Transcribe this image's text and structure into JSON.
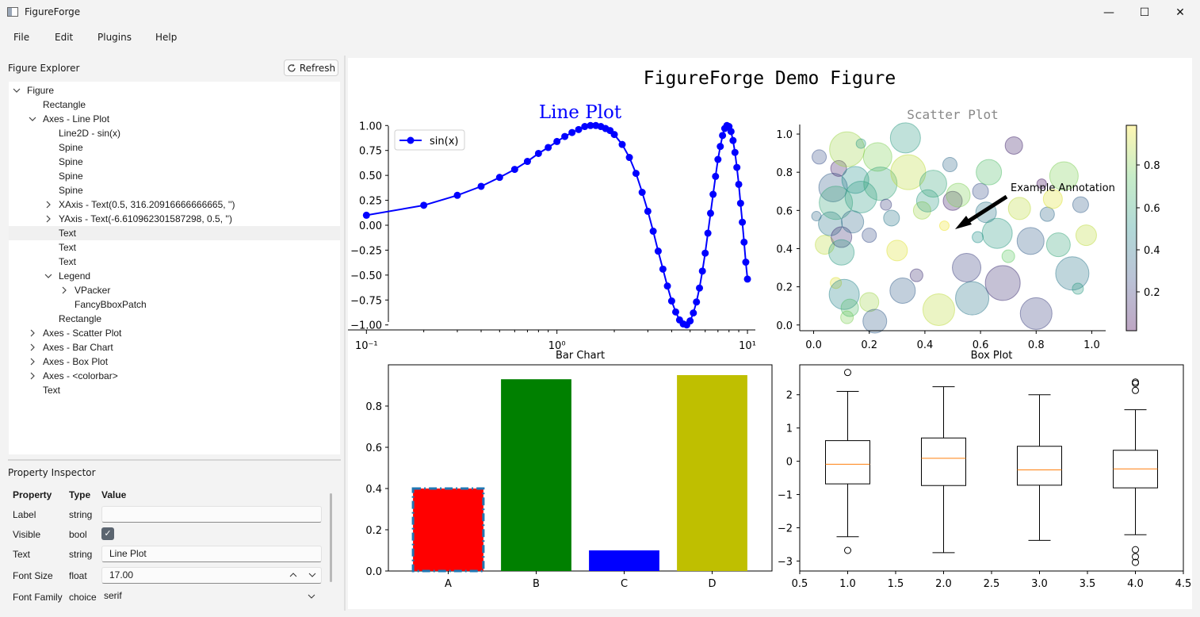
{
  "window": {
    "title": "FigureForge",
    "minimize": "—",
    "maximize": "☐",
    "close": "✕"
  },
  "menu": [
    "File",
    "Edit",
    "Plugins",
    "Help"
  ],
  "explorer": {
    "label": "Figure Explorer",
    "refresh": "Refresh",
    "tree": [
      {
        "text": "Figure",
        "level": 0,
        "arrow": "open"
      },
      {
        "text": "Rectangle",
        "level": 1,
        "arrow": "none"
      },
      {
        "text": "Axes - Line Plot",
        "level": 1,
        "arrow": "open"
      },
      {
        "text": "Line2D - sin(x)",
        "level": 2,
        "arrow": "none"
      },
      {
        "text": "Spine",
        "level": 2,
        "arrow": "none"
      },
      {
        "text": "Spine",
        "level": 2,
        "arrow": "none"
      },
      {
        "text": "Spine",
        "level": 2,
        "arrow": "none"
      },
      {
        "text": "Spine",
        "level": 2,
        "arrow": "none"
      },
      {
        "text": "XAxis - Text(0.5, 316.20916666666665, '')",
        "level": 2,
        "arrow": "closed"
      },
      {
        "text": "YAxis - Text(-6.610962301587298, 0.5, '')",
        "level": 2,
        "arrow": "closed"
      },
      {
        "text": "Text",
        "level": 2,
        "arrow": "none",
        "selected": true
      },
      {
        "text": "Text",
        "level": 2,
        "arrow": "none"
      },
      {
        "text": "Text",
        "level": 2,
        "arrow": "none"
      },
      {
        "text": "Legend",
        "level": 2,
        "arrow": "open"
      },
      {
        "text": "VPacker",
        "level": 3,
        "arrow": "closed"
      },
      {
        "text": "FancyBboxPatch",
        "level": 3,
        "arrow": "none"
      },
      {
        "text": "Rectangle",
        "level": 2,
        "arrow": "none"
      },
      {
        "text": "Axes - Scatter Plot",
        "level": 1,
        "arrow": "closed"
      },
      {
        "text": "Axes - Bar Chart",
        "level": 1,
        "arrow": "closed"
      },
      {
        "text": "Axes - Box Plot",
        "level": 1,
        "arrow": "closed"
      },
      {
        "text": "Axes - <colorbar>",
        "level": 1,
        "arrow": "closed"
      },
      {
        "text": "Text",
        "level": 1,
        "arrow": "none"
      }
    ]
  },
  "inspector": {
    "label": "Property Inspector",
    "headers": [
      "Property",
      "Type",
      "Value"
    ],
    "rows": [
      {
        "property": "Label",
        "type": "string",
        "value": ""
      },
      {
        "property": "Visible",
        "type": "bool",
        "value": "✓"
      },
      {
        "property": "Text",
        "type": "string",
        "value": "Line Plot"
      },
      {
        "property": "Font Size",
        "type": "float",
        "value": "17.00"
      },
      {
        "property": "Font Family",
        "type": "choice",
        "value": "serif"
      }
    ]
  },
  "figure": {
    "suptitle": "FigureForge Demo Figure",
    "line": {
      "title": "Line Plot",
      "legend": "sin(x)",
      "color": "#0000ff",
      "xscale": "log",
      "xlim": [
        0.08,
        11
      ],
      "ylim": [
        -1.05,
        1.05
      ],
      "xticks": [
        "10⁻¹",
        "10⁰",
        "10¹"
      ],
      "yticks": [
        "1.00",
        "0.75",
        "0.50",
        "0.25",
        "0.00",
        "−0.25",
        "−0.50",
        "−0.75",
        "−1.00"
      ]
    },
    "scatter": {
      "title": "Scatter Plot",
      "annotation": "Example Annotation",
      "xticks": [
        "0.0",
        "0.2",
        "0.4",
        "0.6",
        "0.8",
        "1.0"
      ],
      "yticks": [
        "0.0",
        "0.2",
        "0.4",
        "0.6",
        "0.8",
        "1.0"
      ],
      "colorbar_ticks": [
        "0.8",
        "0.6",
        "0.4",
        "0.2"
      ]
    },
    "bar": {
      "title": "Bar Chart",
      "yticks": [
        "0.0",
        "0.2",
        "0.4",
        "0.6",
        "0.8"
      ]
    },
    "box": {
      "title": "Box Plot",
      "xticks": [
        "0.5",
        "1.0",
        "1.5",
        "2.0",
        "2.5",
        "3.0",
        "3.5",
        "4.0",
        "4.5"
      ],
      "yticks": [
        "2",
        "1",
        "0",
        "−1",
        "−2",
        "−3"
      ]
    }
  },
  "chart_data": [
    {
      "type": "line",
      "title": "Line Plot",
      "series": [
        {
          "name": "sin(x)",
          "x": [
            0.1,
            0.2,
            0.3,
            0.4,
            0.5,
            0.6,
            0.7,
            0.8,
            0.9,
            1.0,
            1.1,
            1.2,
            1.3,
            1.4,
            1.5,
            1.6,
            1.7,
            1.8,
            1.9,
            2.0,
            2.2,
            2.4,
            2.6,
            2.8,
            3.0,
            3.2,
            3.4,
            3.6,
            3.8,
            4.0,
            4.2,
            4.4,
            4.6,
            4.8,
            5.0,
            5.2,
            5.4,
            5.6,
            5.8,
            6.0,
            6.2,
            6.4,
            6.6,
            6.8,
            7.0,
            7.2,
            7.4,
            7.6,
            7.8,
            8.0,
            8.2,
            8.4,
            8.6,
            8.8,
            9.0,
            9.2,
            9.4,
            9.6,
            9.8,
            10.0
          ],
          "y": [
            0.1,
            0.2,
            0.3,
            0.39,
            0.48,
            0.56,
            0.64,
            0.72,
            0.78,
            0.84,
            0.89,
            0.93,
            0.96,
            0.99,
            1.0,
            1.0,
            0.99,
            0.97,
            0.95,
            0.91,
            0.81,
            0.68,
            0.52,
            0.33,
            0.14,
            -0.06,
            -0.26,
            -0.44,
            -0.61,
            -0.76,
            -0.87,
            -0.95,
            -0.99,
            -1.0,
            -0.96,
            -0.88,
            -0.77,
            -0.63,
            -0.46,
            -0.28,
            -0.08,
            0.12,
            0.31,
            0.49,
            0.66,
            0.79,
            0.9,
            0.97,
            1.0,
            0.99,
            0.94,
            0.85,
            0.73,
            0.58,
            0.41,
            0.22,
            0.03,
            -0.17,
            -0.37,
            -0.54
          ]
        }
      ],
      "xlim": [
        0.08,
        11
      ],
      "ylim": [
        -1.05,
        1.05
      ],
      "xscale": "log"
    },
    {
      "type": "scatter",
      "title": "Scatter Plot",
      "points": [
        [
          0.01,
          0.57,
          0.35
        ],
        [
          0.02,
          0.88,
          0.25
        ],
        [
          0.04,
          0.42,
          0.9
        ],
        [
          0.06,
          0.53,
          0.4
        ],
        [
          0.07,
          0.72,
          0.3
        ],
        [
          0.08,
          0.64,
          0.6
        ],
        [
          0.08,
          0.22,
          0.95
        ],
        [
          0.09,
          0.82,
          0.1
        ],
        [
          0.1,
          0.46,
          0.15
        ],
        [
          0.1,
          0.38,
          0.55
        ],
        [
          0.11,
          0.16,
          0.45
        ],
        [
          0.12,
          0.92,
          0.85
        ],
        [
          0.12,
          0.04,
          0.8
        ],
        [
          0.13,
          0.09,
          0.7
        ],
        [
          0.14,
          0.54,
          0.35
        ],
        [
          0.15,
          0.76,
          0.5
        ],
        [
          0.17,
          0.67,
          0.55
        ],
        [
          0.17,
          0.95,
          0.55
        ],
        [
          0.2,
          0.47,
          0.25
        ],
        [
          0.2,
          0.12,
          0.85
        ],
        [
          0.22,
          0.02,
          0.3
        ],
        [
          0.23,
          0.88,
          0.8
        ],
        [
          0.24,
          0.74,
          0.6
        ],
        [
          0.26,
          0.63,
          0.2
        ],
        [
          0.28,
          0.56,
          0.4
        ],
        [
          0.3,
          0.39,
          0.95
        ],
        [
          0.32,
          0.18,
          0.3
        ],
        [
          0.33,
          0.98,
          0.55
        ],
        [
          0.34,
          0.8,
          0.9
        ],
        [
          0.37,
          0.26,
          0.15
        ],
        [
          0.39,
          0.6,
          0.85
        ],
        [
          0.41,
          0.65,
          0.55
        ],
        [
          0.43,
          0.74,
          0.6
        ],
        [
          0.45,
          0.08,
          0.9
        ],
        [
          0.47,
          0.52,
          0.98
        ],
        [
          0.49,
          0.84,
          0.35
        ],
        [
          0.5,
          0.65,
          0.1
        ],
        [
          0.52,
          0.68,
          0.8
        ],
        [
          0.55,
          0.3,
          0.2
        ],
        [
          0.57,
          0.14,
          0.4
        ],
        [
          0.59,
          0.46,
          0.5
        ],
        [
          0.6,
          0.7,
          0.25
        ],
        [
          0.62,
          0.59,
          0.4
        ],
        [
          0.63,
          0.8,
          0.7
        ],
        [
          0.66,
          0.48,
          0.55
        ],
        [
          0.68,
          0.22,
          0.15
        ],
        [
          0.7,
          0.36,
          0.75
        ],
        [
          0.72,
          0.94,
          0.1
        ],
        [
          0.74,
          0.61,
          0.9
        ],
        [
          0.78,
          0.44,
          0.3
        ],
        [
          0.8,
          0.06,
          0.2
        ],
        [
          0.82,
          0.74,
          0.05
        ],
        [
          0.84,
          0.58,
          0.35
        ],
        [
          0.86,
          0.66,
          0.95
        ],
        [
          0.88,
          0.42,
          0.6
        ],
        [
          0.9,
          0.78,
          0.8
        ],
        [
          0.93,
          0.27,
          0.4
        ],
        [
          0.95,
          0.19,
          0.55
        ],
        [
          0.96,
          0.63,
          0.3
        ],
        [
          0.98,
          0.47,
          0.9
        ]
      ],
      "xlim": [
        -0.05,
        1.05
      ],
      "ylim": [
        -0.03,
        1.05
      ]
    },
    {
      "type": "bar",
      "title": "Bar Chart",
      "categories": [
        "A",
        "B",
        "C",
        "D"
      ],
      "values": [
        0.4,
        0.93,
        0.1,
        0.95
      ],
      "colors": [
        "#ff0000",
        "#008000",
        "#0000ff",
        "#bfbf00"
      ],
      "ylim": [
        0,
        1.0
      ]
    },
    {
      "type": "box",
      "title": "Box Plot",
      "positions": [
        1,
        2,
        3,
        4
      ],
      "boxes": [
        {
          "whislo": -2.27,
          "q1": -0.68,
          "med": -0.09,
          "q3": 0.62,
          "whishi": 2.1,
          "fliers": [
            2.67,
            -2.68
          ]
        },
        {
          "whislo": -2.75,
          "q1": -0.73,
          "med": 0.09,
          "q3": 0.7,
          "whishi": 2.24,
          "fliers": []
        },
        {
          "whislo": -2.38,
          "q1": -0.72,
          "med": -0.26,
          "q3": 0.45,
          "whishi": 2.0,
          "fliers": []
        },
        {
          "whislo": -2.21,
          "q1": -0.8,
          "med": -0.23,
          "q3": 0.33,
          "whishi": 1.55,
          "fliers": [
            2.38,
            2.34,
            2.13,
            -2.66,
            -2.87,
            -3.04
          ]
        }
      ],
      "xlim": [
        0.5,
        4.5
      ],
      "ylim": [
        -3.3,
        2.9
      ]
    }
  ]
}
